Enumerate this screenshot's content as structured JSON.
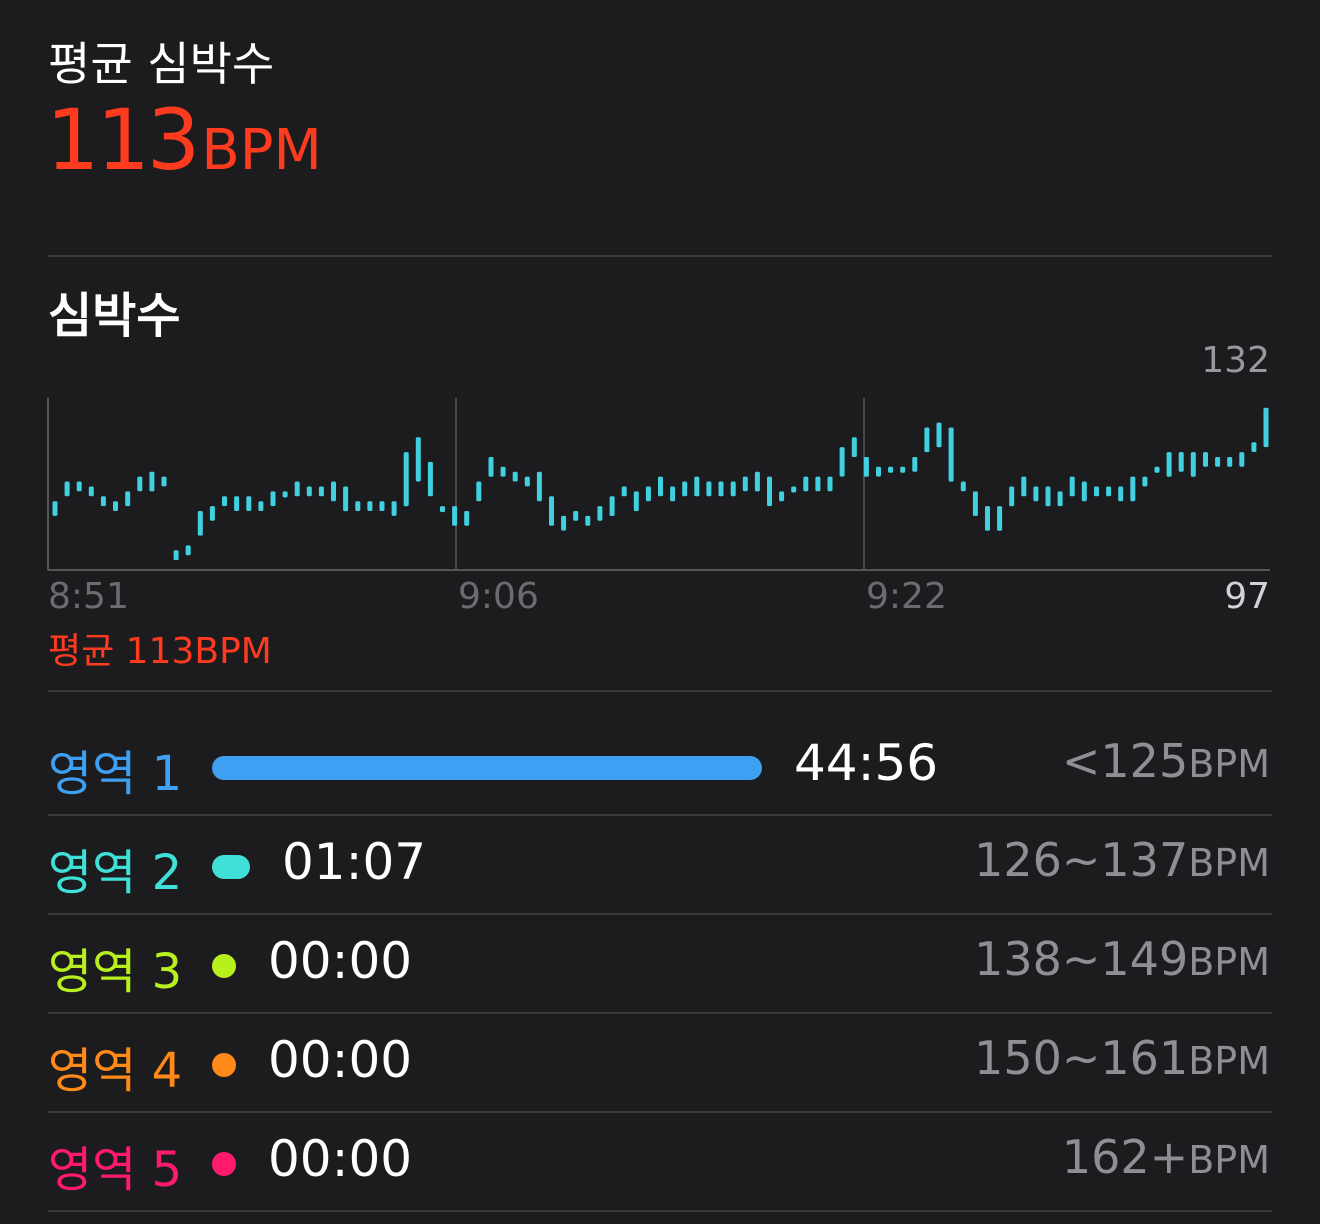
{
  "summary": {
    "title": "평균 심박수",
    "value": "113",
    "unit": "BPM"
  },
  "heart_rate_section": {
    "title": "심박수",
    "axis_max": "132",
    "axis_min": "97",
    "x_ticks": [
      "8:51",
      "9:06",
      "9:22"
    ],
    "average_label": "평균 113BPM"
  },
  "chart_data": {
    "type": "bar",
    "description_units": "BPM",
    "ylim": [
      97,
      132
    ],
    "x_ticks": [
      "8:51",
      "9:06",
      "9:22"
    ],
    "color": "#40d0e0",
    "ranges": [
      [
        108,
        111
      ],
      [
        112,
        115
      ],
      [
        113,
        115
      ],
      [
        112,
        114
      ],
      [
        110,
        112
      ],
      [
        109,
        111
      ],
      [
        110,
        113
      ],
      [
        113,
        116
      ],
      [
        113,
        117
      ],
      [
        114,
        116
      ],
      [
        99,
        101
      ],
      [
        100,
        102
      ],
      [
        104,
        109
      ],
      [
        107,
        110
      ],
      [
        110,
        112
      ],
      [
        109,
        112
      ],
      [
        109,
        112
      ],
      [
        109,
        111
      ],
      [
        110,
        113
      ],
      [
        112,
        113
      ],
      [
        112,
        115
      ],
      [
        112,
        114
      ],
      [
        112,
        114
      ],
      [
        111,
        115
      ],
      [
        109,
        114
      ],
      [
        109,
        111
      ],
      [
        109,
        111
      ],
      [
        109,
        111
      ],
      [
        108,
        111
      ],
      [
        110,
        121
      ],
      [
        115,
        124
      ],
      [
        112,
        119
      ],
      [
        109,
        110
      ],
      [
        106,
        110
      ],
      [
        106,
        109
      ],
      [
        111,
        115
      ],
      [
        116,
        120
      ],
      [
        116,
        118
      ],
      [
        115,
        117
      ],
      [
        114,
        116
      ],
      [
        111,
        117
      ],
      [
        106,
        112
      ],
      [
        105,
        108
      ],
      [
        107,
        109
      ],
      [
        106,
        108
      ],
      [
        107,
        110
      ],
      [
        108,
        112
      ],
      [
        112,
        114
      ],
      [
        109,
        113
      ],
      [
        111,
        114
      ],
      [
        112,
        116
      ],
      [
        111,
        114
      ],
      [
        112,
        115
      ],
      [
        112,
        116
      ],
      [
        112,
        115
      ],
      [
        112,
        115
      ],
      [
        112,
        115
      ],
      [
        113,
        116
      ],
      [
        113,
        117
      ],
      [
        110,
        116
      ],
      [
        111,
        113
      ],
      [
        113,
        114
      ],
      [
        113,
        116
      ],
      [
        113,
        116
      ],
      [
        113,
        116
      ],
      [
        116,
        122
      ],
      [
        120,
        124
      ],
      [
        116,
        120
      ],
      [
        116,
        118
      ],
      [
        117,
        118
      ],
      [
        117,
        118
      ],
      [
        117,
        120
      ],
      [
        121,
        126
      ],
      [
        122,
        127
      ],
      [
        115,
        126
      ],
      [
        113,
        115
      ],
      [
        108,
        113
      ],
      [
        105,
        110
      ],
      [
        105,
        110
      ],
      [
        110,
        114
      ],
      [
        112,
        116
      ],
      [
        111,
        114
      ],
      [
        110,
        114
      ],
      [
        110,
        113
      ],
      [
        112,
        116
      ],
      [
        111,
        115
      ],
      [
        112,
        114
      ],
      [
        112,
        114
      ],
      [
        111,
        114
      ],
      [
        111,
        116
      ],
      [
        114,
        116
      ],
      [
        117,
        118
      ],
      [
        116,
        121
      ],
      [
        117,
        121
      ],
      [
        116,
        121
      ],
      [
        118,
        121
      ],
      [
        118,
        120
      ],
      [
        118,
        120
      ],
      [
        118,
        121
      ],
      [
        121,
        123
      ],
      [
        122,
        130
      ]
    ]
  },
  "zones": [
    {
      "label": "영역 1",
      "time": "44:56",
      "range": "<125",
      "unit": "BPM",
      "color": "#3ea0f2",
      "fraction": 0.976
    },
    {
      "label": "영역 2",
      "time": "01:07",
      "range": "126~137",
      "unit": "BPM",
      "color": "#40e0d8",
      "fraction": 0.024
    },
    {
      "label": "영역 3",
      "time": "00:00",
      "range": "138~149",
      "unit": "BPM",
      "color": "#b8f01e",
      "fraction": 0
    },
    {
      "label": "영역 4",
      "time": "00:00",
      "range": "150~161",
      "unit": "BPM",
      "color": "#ff8a1a",
      "fraction": 0
    },
    {
      "label": "영역 5",
      "time": "00:00",
      "range": "162+",
      "unit": "BPM",
      "color": "#ff1a6e",
      "fraction": 0
    }
  ]
}
